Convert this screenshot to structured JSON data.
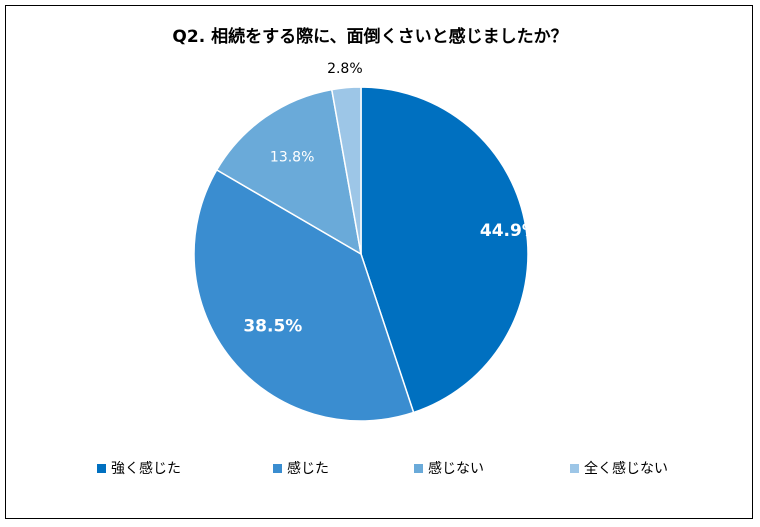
{
  "chart_data": {
    "type": "pie",
    "title": "Q2.  相続をする際に、面倒くさいと感じましたか？",
    "categories": [
      "強く感じた",
      "感じた",
      "感じない",
      "全く感じない"
    ],
    "values": [
      44.9,
      38.5,
      13.8,
      2.8
    ],
    "value_labels": [
      "44.9%",
      "38.5%",
      "13.8%",
      "2.8%"
    ],
    "colors": [
      "#0070C0",
      "#3A8DD0",
      "#6AAAD9",
      "#9DC6E7"
    ],
    "legend_position": "bottom",
    "start_angle": "12 o'clock",
    "direction": "clockwise"
  }
}
